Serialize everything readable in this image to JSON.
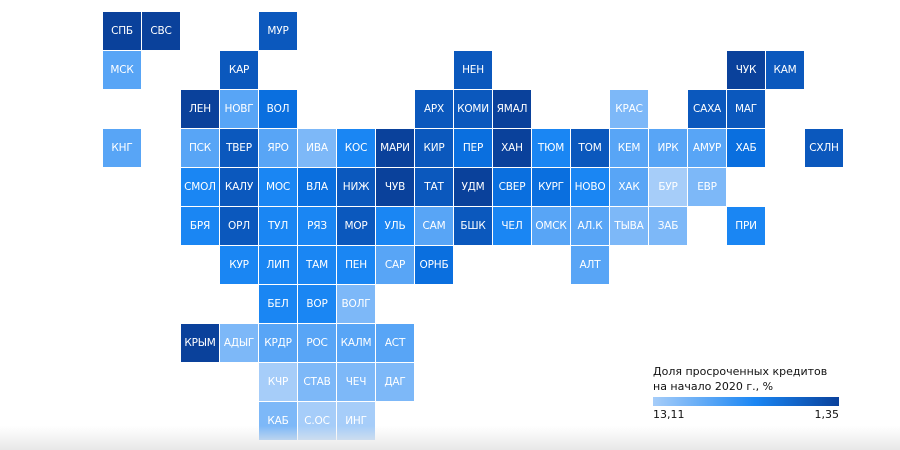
{
  "palette": [
    "#a6cdf9",
    "#7db8f8",
    "#58a5f6",
    "#1a86f3",
    "#0a6fdf",
    "#0b58bd",
    "#0a419b"
  ],
  "regions": [
    {
      "label": "СПБ",
      "level": 6
    },
    {
      "label": "СВС",
      "level": 6
    },
    {
      "label": "МУР",
      "level": 5
    },
    {
      "label": "МСК",
      "level": 2
    },
    {
      "label": "КАР",
      "level": 5
    },
    {
      "label": "НЕН",
      "level": 5
    },
    {
      "label": "ЧУК",
      "level": 6
    },
    {
      "label": "КАМ",
      "level": 5
    },
    {
      "label": "ЛЕН",
      "level": 6
    },
    {
      "label": "НОВГ",
      "level": 2
    },
    {
      "label": "ВОЛ",
      "level": 4
    },
    {
      "label": "АРХ",
      "level": 5
    },
    {
      "label": "КОМИ",
      "level": 5
    },
    {
      "label": "ЯМАЛ",
      "level": 6
    },
    {
      "label": "КРАС",
      "level": 1
    },
    {
      "label": "САХА",
      "level": 5
    },
    {
      "label": "МАГ",
      "level": 5
    },
    {
      "label": "КНГ",
      "level": 2
    },
    {
      "label": "ПСК",
      "level": 2
    },
    {
      "label": "ТВЕР",
      "level": 5
    },
    {
      "label": "ЯРО",
      "level": 2
    },
    {
      "label": "ИВА",
      "level": 1
    },
    {
      "label": "КОС",
      "level": 3
    },
    {
      "label": "МАРИ",
      "level": 6
    },
    {
      "label": "КИР",
      "level": 5
    },
    {
      "label": "ПЕР",
      "level": 4
    },
    {
      "label": "ХАН",
      "level": 6
    },
    {
      "label": "ТЮМ",
      "level": 3
    },
    {
      "label": "ТОМ",
      "level": 5
    },
    {
      "label": "КЕМ",
      "level": 2
    },
    {
      "label": "ИРК",
      "level": 2
    },
    {
      "label": "АМУР",
      "level": 2
    },
    {
      "label": "ХАБ",
      "level": 4
    },
    {
      "label": "СХЛН",
      "level": 5
    },
    {
      "label": "СМОЛ",
      "level": 3
    },
    {
      "label": "КАЛУ",
      "level": 5
    },
    {
      "label": "МОС",
      "level": 3
    },
    {
      "label": "ВЛА",
      "level": 4
    },
    {
      "label": "НИЖ",
      "level": 5
    },
    {
      "label": "ЧУВ",
      "level": 6
    },
    {
      "label": "ТАТ",
      "level": 5
    },
    {
      "label": "УДМ",
      "level": 6
    },
    {
      "label": "СВЕР",
      "level": 4
    },
    {
      "label": "КУРГ",
      "level": 4
    },
    {
      "label": "НОВО",
      "level": 3
    },
    {
      "label": "ХАК",
      "level": 2
    },
    {
      "label": "БУР",
      "level": 0
    },
    {
      "label": "ЕВР",
      "level": 1
    },
    {
      "label": "БРЯ",
      "level": 3
    },
    {
      "label": "ОРЛ",
      "level": 5
    },
    {
      "label": "ТУЛ",
      "level": 3
    },
    {
      "label": "РЯЗ",
      "level": 3
    },
    {
      "label": "МОР",
      "level": 5
    },
    {
      "label": "УЛЬ",
      "level": 3
    },
    {
      "label": "САМ",
      "level": 2
    },
    {
      "label": "БШК",
      "level": 5
    },
    {
      "label": "ЧЕЛ",
      "level": 3
    },
    {
      "label": "ОМСК",
      "level": 2
    },
    {
      "label": "АЛ.К",
      "level": 2
    },
    {
      "label": "ТЫВА",
      "level": 1
    },
    {
      "label": "ЗАБ",
      "level": 1
    },
    {
      "label": "ПРИ",
      "level": 3
    },
    {
      "label": "КУР",
      "level": 3
    },
    {
      "label": "ЛИП",
      "level": 3
    },
    {
      "label": "ТАМ",
      "level": 3
    },
    {
      "label": "ПЕН",
      "level": 3
    },
    {
      "label": "САР",
      "level": 2
    },
    {
      "label": "ОРНБ",
      "level": 4
    },
    {
      "label": "АЛТ",
      "level": 2
    },
    {
      "label": "БЕЛ",
      "level": 3
    },
    {
      "label": "ВОР",
      "level": 3
    },
    {
      "label": "ВОЛГ",
      "level": 1
    },
    {
      "label": "КРЫМ",
      "level": 6
    },
    {
      "label": "АДЫГ",
      "level": 1
    },
    {
      "label": "КРДР",
      "level": 2
    },
    {
      "label": "РОС",
      "level": 2
    },
    {
      "label": "КАЛМ",
      "level": 2
    },
    {
      "label": "АСТ",
      "level": 2
    },
    {
      "label": "КЧР",
      "level": 0
    },
    {
      "label": "СТАВ",
      "level": 1
    },
    {
      "label": "ЧЕЧ",
      "level": 1
    },
    {
      "label": "ДАГ",
      "level": 1
    },
    {
      "label": "КАБ",
      "level": 1
    },
    {
      "label": "С.ОС",
      "level": 0
    },
    {
      "label": "ИНГ",
      "level": 0
    }
  ],
  "legend": {
    "title": "Доля просроченных кредитов на начало 2020 г., %",
    "min_label": "13,11",
    "max_label": "1,35"
  }
}
